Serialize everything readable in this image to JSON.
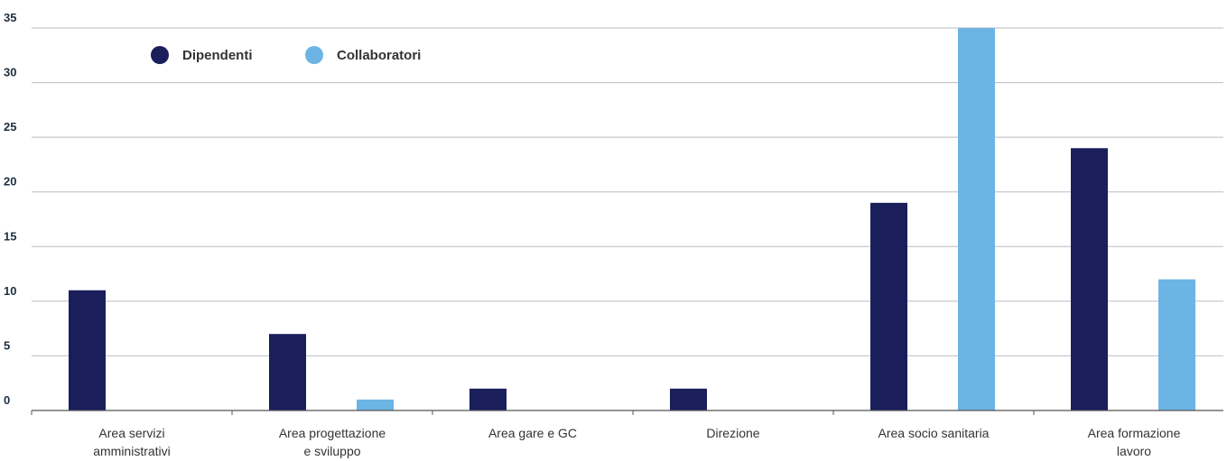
{
  "chart_data": {
    "type": "bar",
    "categories": [
      "Area servizi amministrativi",
      "Area progettazione e sviluppo",
      "Area gare e GC",
      "Direzione",
      "Area socio sanitaria",
      "Area formazione lavoro"
    ],
    "category_label_lines": [
      [
        "Area servizi",
        "amministrativi"
      ],
      [
        "Area progettazione",
        "e sviluppo"
      ],
      [
        "Area gare e GC"
      ],
      [
        "Direzione"
      ],
      [
        "Area socio sanitaria"
      ],
      [
        "Area formazione",
        "lavoro"
      ]
    ],
    "series": [
      {
        "name": "Dipendenti",
        "color": "#1a1f5c",
        "values": [
          11,
          7,
          2,
          2,
          19,
          24
        ]
      },
      {
        "name": "Collaboratori",
        "color": "#6cb4e4",
        "values": [
          0,
          1,
          0,
          0,
          35,
          12
        ]
      }
    ],
    "ylim": [
      0,
      35
    ],
    "yticks": [
      0,
      5,
      10,
      15,
      20,
      25,
      30,
      35
    ],
    "grid": true,
    "legend_position": "top-left",
    "title": "",
    "xlabel": "",
    "ylabel": ""
  }
}
